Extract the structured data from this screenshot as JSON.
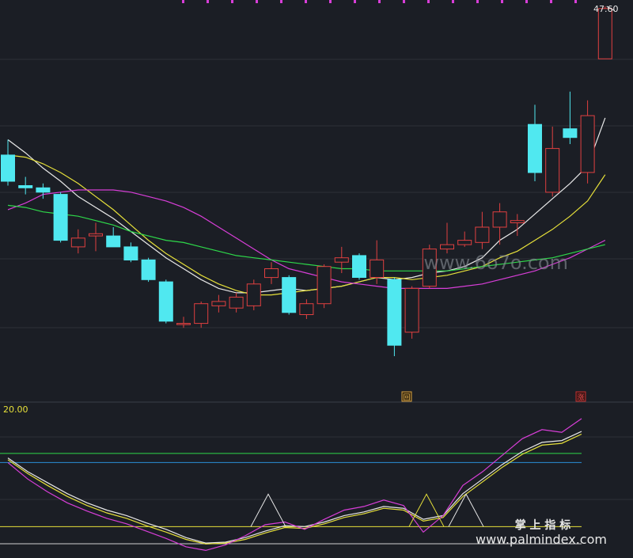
{
  "chart_data": {
    "type": "candlestick",
    "main_panel": {
      "price_label": "47.60",
      "candles": [
        {
          "o": 9.5,
          "h": 10.2,
          "l": 8.1,
          "c": 8.3
        },
        {
          "o": 8.1,
          "h": 8.5,
          "l": 7.7,
          "c": 8.0
        },
        {
          "o": 8.0,
          "h": 8.2,
          "l": 7.5,
          "c": 7.8
        },
        {
          "o": 7.7,
          "h": 7.8,
          "l": 5.5,
          "c": 5.6
        },
        {
          "o": 5.3,
          "h": 6.1,
          "l": 5.0,
          "c": 5.7
        },
        {
          "o": 5.8,
          "h": 6.4,
          "l": 5.1,
          "c": 5.9
        },
        {
          "o": 5.8,
          "h": 6.2,
          "l": 5.3,
          "c": 5.3
        },
        {
          "o": 5.3,
          "h": 5.5,
          "l": 4.6,
          "c": 4.7
        },
        {
          "o": 4.7,
          "h": 4.8,
          "l": 3.7,
          "c": 3.8
        },
        {
          "o": 3.7,
          "h": 3.8,
          "l": 1.8,
          "c": 1.9
        },
        {
          "o": 1.8,
          "h": 2.1,
          "l": 1.6,
          "c": 1.8
        },
        {
          "o": 1.8,
          "h": 2.8,
          "l": 1.6,
          "c": 2.7
        },
        {
          "o": 2.6,
          "h": 3.1,
          "l": 2.3,
          "c": 2.8
        },
        {
          "o": 2.5,
          "h": 3.2,
          "l": 2.3,
          "c": 3.0
        },
        {
          "o": 2.6,
          "h": 3.8,
          "l": 2.4,
          "c": 3.6
        },
        {
          "o": 3.9,
          "h": 4.6,
          "l": 3.6,
          "c": 4.3
        },
        {
          "o": 3.9,
          "h": 4.0,
          "l": 2.2,
          "c": 2.3
        },
        {
          "o": 2.2,
          "h": 2.9,
          "l": 2.0,
          "c": 2.7
        },
        {
          "o": 2.7,
          "h": 4.5,
          "l": 2.5,
          "c": 4.4
        },
        {
          "o": 4.6,
          "h": 5.3,
          "l": 4.1,
          "c": 4.8
        },
        {
          "o": 4.9,
          "h": 5.0,
          "l": 3.8,
          "c": 3.9
        },
        {
          "o": 3.9,
          "h": 5.6,
          "l": 3.6,
          "c": 4.7
        },
        {
          "o": 3.8,
          "h": 3.9,
          "l": 0.3,
          "c": 0.8
        },
        {
          "o": 1.4,
          "h": 3.5,
          "l": 1.1,
          "c": 3.4
        },
        {
          "o": 3.5,
          "h": 5.4,
          "l": 3.4,
          "c": 5.2
        },
        {
          "o": 5.2,
          "h": 6.4,
          "l": 5.0,
          "c": 5.4
        },
        {
          "o": 5.4,
          "h": 6.0,
          "l": 5.3,
          "c": 5.6
        },
        {
          "o": 5.5,
          "h": 6.9,
          "l": 5.2,
          "c": 6.2
        },
        {
          "o": 6.2,
          "h": 7.3,
          "l": 5.4,
          "c": 6.9
        },
        {
          "o": 6.4,
          "h": 6.8,
          "l": 5.8,
          "c": 6.5
        },
        {
          "o": 10.9,
          "h": 11.8,
          "l": 8.3,
          "c": 8.7
        },
        {
          "o": 7.8,
          "h": 10.8,
          "l": 7.6,
          "c": 9.8
        },
        {
          "o": 10.7,
          "h": 12.4,
          "l": 10.0,
          "c": 10.3
        },
        {
          "o": 8.7,
          "h": 12.0,
          "l": 8.2,
          "c": 11.3
        },
        {
          "o": 13.9,
          "h": 16.3,
          "l": 13.9,
          "c": 16.2
        }
      ],
      "moving_averages": [
        {
          "color": "#e8e8e8",
          "values": [
            10.2,
            9.6,
            8.9,
            8.3,
            7.6,
            7.1,
            6.6,
            6.0,
            5.4,
            4.8,
            4.3,
            3.8,
            3.4,
            3.2,
            3.2,
            3.3,
            3.4,
            3.3,
            3.4,
            3.5,
            3.7,
            3.9,
            3.8,
            3.9,
            4.1,
            4.2,
            4.4,
            4.8,
            5.6,
            6.1,
            6.8,
            7.5,
            8.2,
            9.0,
            11.2
          ]
        },
        {
          "color": "#e6e03a",
          "values": [
            9.5,
            9.4,
            9.1,
            8.7,
            8.2,
            7.6,
            7.0,
            6.3,
            5.6,
            5.0,
            4.5,
            4.0,
            3.6,
            3.3,
            3.1,
            3.1,
            3.2,
            3.3,
            3.4,
            3.5,
            3.7,
            3.9,
            3.9,
            3.8,
            3.9,
            4.0,
            4.2,
            4.4,
            4.8,
            5.1,
            5.6,
            6.1,
            6.7,
            7.4,
            8.6
          ]
        },
        {
          "color": "#d83ed8",
          "values": [
            7.0,
            7.3,
            7.7,
            7.8,
            7.9,
            7.9,
            7.9,
            7.8,
            7.6,
            7.4,
            7.1,
            6.7,
            6.2,
            5.7,
            5.2,
            4.7,
            4.3,
            4.1,
            3.9,
            3.7,
            3.6,
            3.5,
            3.4,
            3.4,
            3.4,
            3.4,
            3.5,
            3.6,
            3.8,
            4.0,
            4.2,
            4.5,
            4.8,
            5.2,
            5.6
          ]
        },
        {
          "color": "#2ed84a",
          "values": [
            7.2,
            7.1,
            6.9,
            6.8,
            6.7,
            6.5,
            6.3,
            6.0,
            5.8,
            5.6,
            5.5,
            5.3,
            5.1,
            4.9,
            4.8,
            4.7,
            4.6,
            4.5,
            4.4,
            4.3,
            4.3,
            4.2,
            4.2,
            4.2,
            4.2,
            4.2,
            4.3,
            4.4,
            4.5,
            4.6,
            4.7,
            4.8,
            5.0,
            5.2,
            5.4
          ]
        }
      ],
      "badges": [
        "回",
        "涨"
      ]
    },
    "sub_panel": {
      "label": "20.00",
      "ref_lines": [
        {
          "value": 80,
          "color": "#2ed84a"
        },
        {
          "value": 70,
          "color": "#2b8fd6"
        },
        {
          "value": 0,
          "color": "#e6e03a"
        }
      ],
      "series": [
        {
          "color": "#e8e8e8",
          "values": [
            75,
            60,
            48,
            36,
            26,
            18,
            12,
            4,
            -3,
            -12,
            -18,
            -17,
            -12,
            -5,
            1,
            0,
            5,
            12,
            16,
            22,
            20,
            8,
            12,
            36,
            52,
            68,
            82,
            92,
            94,
            104
          ]
        },
        {
          "color": "#e6e03a",
          "values": [
            73,
            58,
            45,
            33,
            23,
            15,
            9,
            1,
            -6,
            -14,
            -19,
            -18,
            -14,
            -7,
            -1,
            -2,
            3,
            10,
            14,
            20,
            18,
            6,
            10,
            33,
            49,
            65,
            79,
            89,
            91,
            101
          ]
        },
        {
          "color": "#d83ed8",
          "values": [
            70,
            52,
            38,
            26,
            17,
            9,
            3,
            -5,
            -13,
            -22,
            -26,
            -20,
            -10,
            2,
            5,
            -3,
            8,
            18,
            22,
            29,
            23,
            -6,
            12,
            45,
            60,
            78,
            96,
            106,
            103,
            118
          ]
        }
      ],
      "signals": [
        0,
        0,
        0,
        0,
        0,
        0,
        0,
        0,
        0,
        0,
        0,
        0,
        0,
        1,
        0,
        0,
        0,
        0,
        0,
        0,
        0,
        1,
        0,
        1,
        0,
        0,
        0,
        0,
        0,
        0
      ]
    }
  },
  "watermarks": {
    "top_right": "www.6o7o.com",
    "bottom_cn": "掌 上 指 标",
    "bottom_url": "www.palmindex.com"
  }
}
